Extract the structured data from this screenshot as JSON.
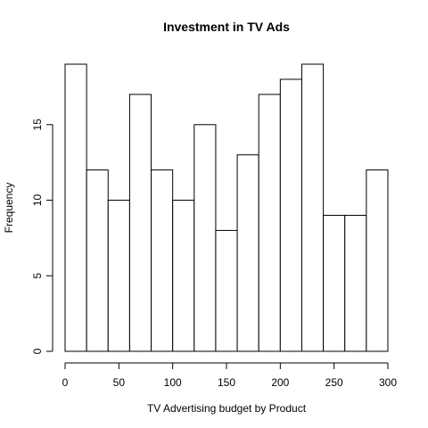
{
  "chart_data": {
    "type": "bar",
    "title": "Investment in TV Ads",
    "xlabel": "TV Advertising budget by Product",
    "ylabel": "Frequency",
    "bin_edges": [
      0,
      20,
      40,
      60,
      80,
      100,
      120,
      140,
      160,
      180,
      200,
      220,
      240,
      260,
      280,
      300
    ],
    "values": [
      19,
      12,
      10,
      17,
      12,
      10,
      15,
      8,
      13,
      17,
      18,
      19,
      9,
      9,
      12
    ],
    "xlim": [
      0,
      300
    ],
    "ylim": [
      0,
      19
    ],
    "xticks": [
      0,
      50,
      100,
      150,
      200,
      250,
      300
    ],
    "yticks": [
      0,
      5,
      10,
      15
    ],
    "grid": false
  }
}
